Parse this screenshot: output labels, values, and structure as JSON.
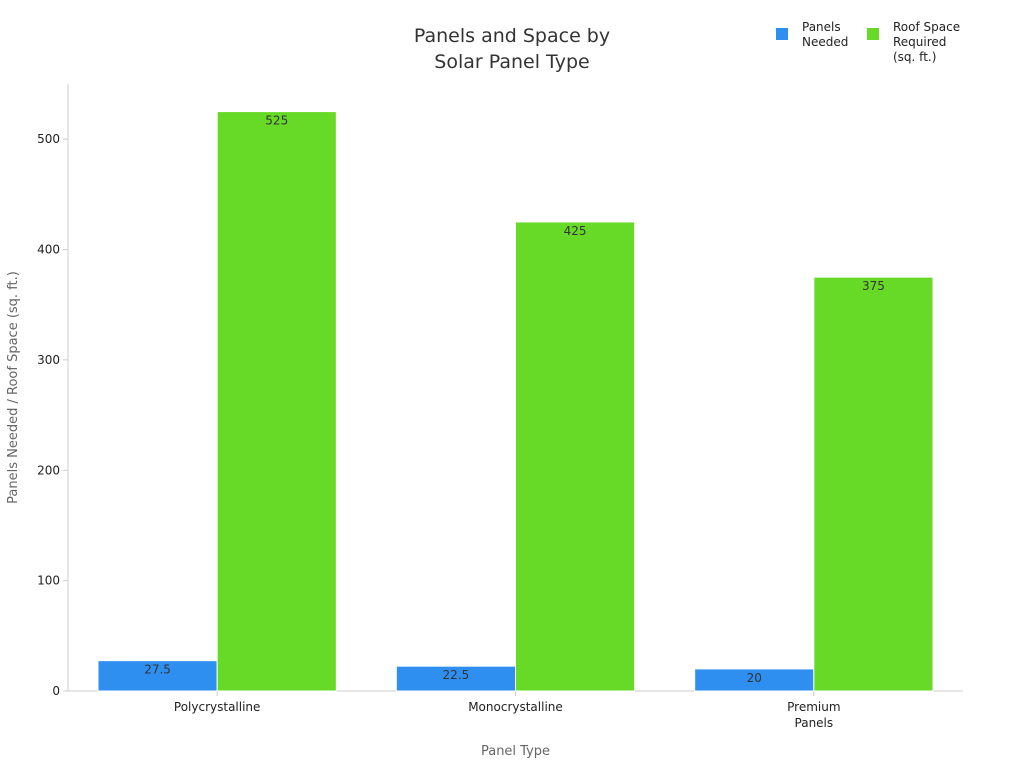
{
  "chart_data": {
    "type": "bar",
    "title": [
      "Panels and Space by",
      "Solar Panel Type"
    ],
    "xlabel": "Panel Type",
    "ylabel": "Panels Needed / Roof Space (sq. ft.)",
    "categories": [
      [
        "Polycrystalline"
      ],
      [
        "Monocrystalline"
      ],
      [
        "Premium",
        "Panels"
      ]
    ],
    "ylim": [
      0,
      550
    ],
    "yticks": [
      0,
      100,
      200,
      300,
      400,
      500
    ],
    "grid": false,
    "legend_position": "top-right",
    "series": [
      {
        "name": [
          "Panels",
          "Needed"
        ],
        "color": "#2f8ff0",
        "values": [
          27.5,
          22.5,
          20
        ],
        "labels": [
          "27.5",
          "22.5",
          "20"
        ]
      },
      {
        "name": [
          "Roof Space",
          "Required",
          "(sq. ft.)"
        ],
        "color": "#66da26",
        "values": [
          525,
          425,
          375
        ],
        "labels": [
          "525",
          "425",
          "375"
        ]
      }
    ]
  },
  "colors": {
    "axis": "#cccccc",
    "tick_text": "#222222",
    "axis_label": "#666666",
    "title": "#333333",
    "bar_label": "#333333"
  }
}
